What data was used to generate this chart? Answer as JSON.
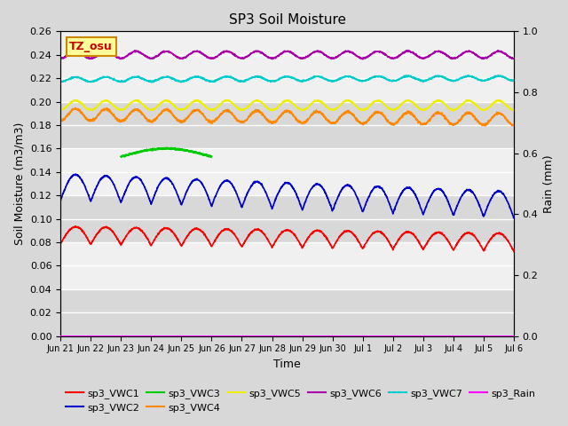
{
  "title": "SP3 Soil Moisture",
  "xlabel": "Time",
  "ylabel_left": "Soil Moisture (m3/m3)",
  "ylabel_right": "Rain (mm)",
  "ylim_left": [
    0.0,
    0.26
  ],
  "ylim_right": [
    0.0,
    1.0
  ],
  "bg_light": "#f0f0f0",
  "bg_dark": "#d8d8d8",
  "tick_labels": [
    "Jun 21",
    "Jun 22",
    "Jun 23",
    "Jun 24",
    "Jun 25",
    "Jun 26",
    "Jun 27",
    "Jun 28",
    "Jun 29",
    "Jun 30",
    "Jul 1",
    "Jul 2",
    "Jul 3",
    "Jul 4",
    "Jul 5",
    "Jul 6"
  ],
  "colors": {
    "vwc1": "#ff0000",
    "vwc2": "#0000cc",
    "vwc3": "#00cc00",
    "vwc4": "#ff8800",
    "vwc5": "#eeee00",
    "vwc6": "#aa00aa",
    "vwc7": "#00cccc",
    "rain": "#ff00ff"
  },
  "annotation_text": "TZ_osu",
  "annotation_color": "#cc0000",
  "annotation_bg": "#ffff99",
  "annotation_border": "#cc8800"
}
